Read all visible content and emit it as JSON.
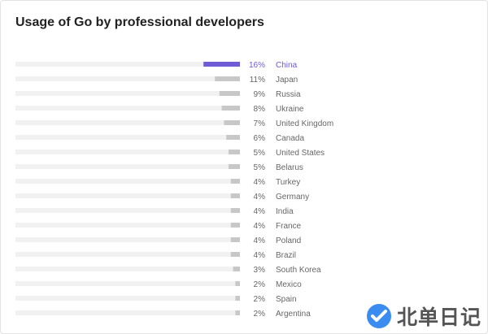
{
  "title": "Usage of Go by professional developers",
  "colors": {
    "highlight": "#6f5bd6",
    "bar": "#c8c8c8",
    "track": "#f1f1f1",
    "text": "#666666",
    "watermark_blue": "#3b8cf0"
  },
  "watermark": {
    "text": "北单日记",
    "icon": "check-logo-icon"
  },
  "chart_data": {
    "type": "bar",
    "orientation": "horizontal",
    "categories": [
      "China",
      "Japan",
      "Russia",
      "Ukraine",
      "United Kingdom",
      "Canada",
      "United States",
      "Belarus",
      "Turkey",
      "Germany",
      "India",
      "France",
      "Poland",
      "Brazil",
      "South Korea",
      "Mexico",
      "Spain",
      "Argentina"
    ],
    "values": [
      16,
      11,
      9,
      8,
      7,
      6,
      5,
      5,
      4,
      4,
      4,
      4,
      4,
      4,
      3,
      2,
      2,
      2
    ],
    "labels": [
      "16%",
      "11%",
      "9%",
      "8%",
      "7%",
      "6%",
      "5%",
      "5%",
      "4%",
      "4%",
      "4%",
      "4%",
      "4%",
      "4%",
      "3%",
      "2%",
      "2%",
      "2%"
    ],
    "highlighted": "China",
    "xlim": [
      0,
      100
    ],
    "unit": "%"
  }
}
